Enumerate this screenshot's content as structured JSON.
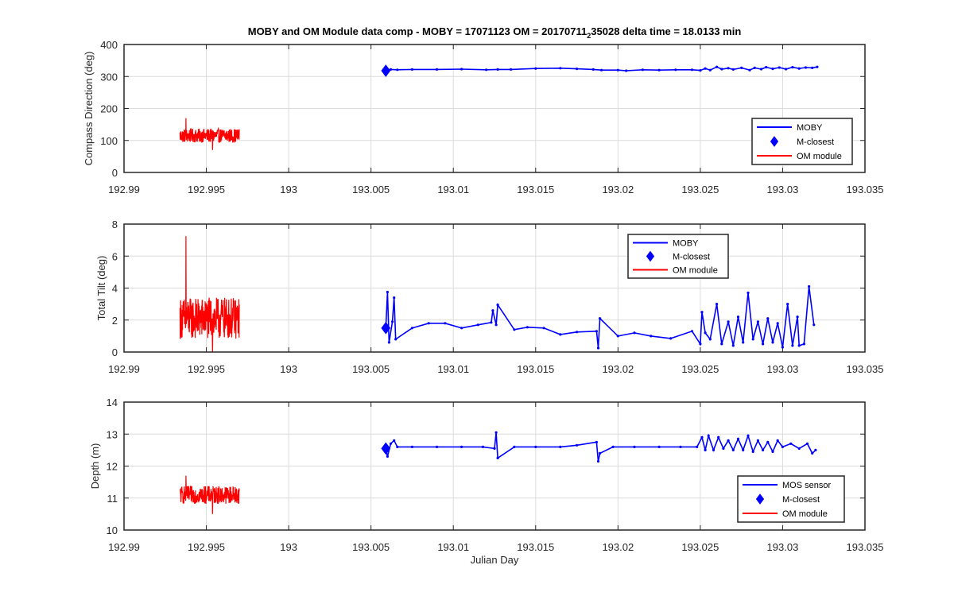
{
  "title": {
    "prefix": "MOBY and OM Module data comp - MOBY = 17071123 OM = 20170711",
    "subscript": "2",
    "suffix": "35028 delta time = 18.0133 min"
  },
  "xlabel": "Julian Day",
  "colors": {
    "moby": "#0000ff",
    "om": "#ff0000",
    "grid": "#dcdcdc",
    "axis": "#262626"
  },
  "chart_data": [
    {
      "type": "line",
      "ylabel": "Compass Direction (deg)",
      "xlim": [
        192.99,
        193.035
      ],
      "ylim": [
        0,
        400
      ],
      "xticks": [
        "192.99",
        "192.995",
        "193",
        "193.005",
        "193.01",
        "193.015",
        "193.02",
        "193.025",
        "193.03",
        "193.035"
      ],
      "yticks": [
        "0",
        "100",
        "200",
        "300",
        "400"
      ],
      "grid": true,
      "legend": {
        "placement": "bottom-right",
        "entries": [
          "MOBY",
          "M-closest",
          "OM module"
        ]
      },
      "series": [
        {
          "name": "MOBY",
          "style": "line-with-dots",
          "points": [
            [
              193.0059,
              318
            ],
            [
              193.0062,
              322
            ],
            [
              193.0066,
              321
            ],
            [
              193.0075,
              322
            ],
            [
              193.009,
              322
            ],
            [
              193.0105,
              323
            ],
            [
              193.012,
              321
            ],
            [
              193.0127,
              322
            ],
            [
              193.0135,
              322
            ],
            [
              193.015,
              325
            ],
            [
              193.0165,
              326
            ],
            [
              193.0175,
              324
            ],
            [
              193.0185,
              322
            ],
            [
              193.019,
              320
            ],
            [
              193.02,
              320
            ],
            [
              193.0205,
              318
            ],
            [
              193.0215,
              321
            ],
            [
              193.0225,
              320
            ],
            [
              193.0235,
              321
            ],
            [
              193.0245,
              321
            ],
            [
              193.025,
              319
            ],
            [
              193.0253,
              325
            ],
            [
              193.0256,
              320
            ],
            [
              193.026,
              330
            ],
            [
              193.0263,
              323
            ],
            [
              193.0267,
              326
            ],
            [
              193.027,
              322
            ],
            [
              193.0275,
              327
            ],
            [
              193.028,
              320
            ],
            [
              193.0283,
              327
            ],
            [
              193.0287,
              323
            ],
            [
              193.029,
              329
            ],
            [
              193.0294,
              324
            ],
            [
              193.0298,
              328
            ],
            [
              193.0302,
              323
            ],
            [
              193.0306,
              329
            ],
            [
              193.031,
              325
            ],
            [
              193.0314,
              328
            ],
            [
              193.0318,
              327
            ],
            [
              193.0321,
              330
            ]
          ]
        },
        {
          "name": "M-closest",
          "style": "diamond",
          "points": [
            [
              193.0059,
              318
            ]
          ]
        },
        {
          "name": "OM module",
          "style": "noise-band",
          "x_range": [
            192.9934,
            192.997
          ],
          "center": 115,
          "spread": 22,
          "peaks": [
            70,
            170
          ]
        }
      ]
    },
    {
      "type": "line",
      "ylabel": "Total Tilt (deg)",
      "xlim": [
        192.99,
        193.035
      ],
      "ylim": [
        0,
        8
      ],
      "xticks": [
        "192.99",
        "192.995",
        "193",
        "193.005",
        "193.01",
        "193.015",
        "193.02",
        "193.025",
        "193.03",
        "193.035"
      ],
      "yticks": [
        "0",
        "2",
        "4",
        "6",
        "8"
      ],
      "grid": true,
      "legend": {
        "placement": "top-center-right",
        "entries": [
          "MOBY",
          "M-closest",
          "OM module"
        ]
      },
      "series": [
        {
          "name": "MOBY",
          "style": "line-with-dots",
          "points": [
            [
              193.0059,
              1.5
            ],
            [
              193.006,
              3.75
            ],
            [
              193.0061,
              0.6
            ],
            [
              193.0063,
              1.9
            ],
            [
              193.0064,
              3.4
            ],
            [
              193.0065,
              0.8
            ],
            [
              193.0075,
              1.5
            ],
            [
              193.0085,
              1.8
            ],
            [
              193.0095,
              1.8
            ],
            [
              193.0105,
              1.5
            ],
            [
              193.0115,
              1.7
            ],
            [
              193.0123,
              1.85
            ],
            [
              193.0124,
              2.6
            ],
            [
              193.0126,
              1.7
            ],
            [
              193.0127,
              2.95
            ],
            [
              193.0137,
              1.4
            ],
            [
              193.0145,
              1.55
            ],
            [
              193.0155,
              1.5
            ],
            [
              193.0165,
              1.1
            ],
            [
              193.0175,
              1.25
            ],
            [
              193.0187,
              1.3
            ],
            [
              193.0188,
              0.25
            ],
            [
              193.0189,
              2.1
            ],
            [
              193.02,
              1.0
            ],
            [
              193.021,
              1.2
            ],
            [
              193.022,
              1.0
            ],
            [
              193.0232,
              0.85
            ],
            [
              193.0245,
              1.3
            ],
            [
              193.025,
              0.5
            ],
            [
              193.0251,
              2.5
            ],
            [
              193.0253,
              1.2
            ],
            [
              193.0256,
              0.8
            ],
            [
              193.026,
              3.0
            ],
            [
              193.0263,
              0.5
            ],
            [
              193.0267,
              1.9
            ],
            [
              193.027,
              0.4
            ],
            [
              193.0273,
              2.2
            ],
            [
              193.0276,
              0.6
            ],
            [
              193.0279,
              3.7
            ],
            [
              193.0282,
              0.8
            ],
            [
              193.0285,
              1.9
            ],
            [
              193.0288,
              0.5
            ],
            [
              193.0291,
              2.1
            ],
            [
              193.0294,
              0.6
            ],
            [
              193.0297,
              1.8
            ],
            [
              193.03,
              0.3
            ],
            [
              193.0303,
              3.0
            ],
            [
              193.0306,
              0.4
            ],
            [
              193.0309,
              2.2
            ],
            [
              193.031,
              0.4
            ],
            [
              193.0313,
              0.5
            ],
            [
              193.0316,
              4.1
            ],
            [
              193.0319,
              1.7
            ]
          ]
        },
        {
          "name": "M-closest",
          "style": "diamond",
          "points": [
            [
              193.0059,
              1.5
            ]
          ]
        },
        {
          "name": "OM module",
          "style": "noise-band",
          "x_range": [
            192.9934,
            192.997
          ],
          "center": 2.1,
          "spread": 1.3,
          "peaks": [
            0.0,
            7.25
          ]
        }
      ]
    },
    {
      "type": "line",
      "ylabel": "Depth (m)",
      "xlim": [
        192.99,
        193.035
      ],
      "ylim": [
        10,
        14
      ],
      "xticks": [
        "192.99",
        "192.995",
        "193",
        "193.005",
        "193.01",
        "193.015",
        "193.02",
        "193.025",
        "193.03",
        "193.035"
      ],
      "yticks": [
        "10",
        "11",
        "12",
        "13",
        "14"
      ],
      "grid": true,
      "legend": {
        "placement": "bottom-right",
        "entries": [
          "MOS sensor",
          "M-closest",
          "OM module"
        ]
      },
      "series": [
        {
          "name": "MOS sensor",
          "style": "line-with-dots",
          "points": [
            [
              193.0059,
              12.55
            ],
            [
              193.006,
              12.3
            ],
            [
              193.0062,
              12.7
            ],
            [
              193.0064,
              12.8
            ],
            [
              193.0066,
              12.6
            ],
            [
              193.0075,
              12.6
            ],
            [
              193.009,
              12.6
            ],
            [
              193.0105,
              12.6
            ],
            [
              193.0118,
              12.6
            ],
            [
              193.0125,
              12.55
            ],
            [
              193.0126,
              13.05
            ],
            [
              193.0127,
              12.25
            ],
            [
              193.0137,
              12.6
            ],
            [
              193.015,
              12.6
            ],
            [
              193.0165,
              12.6
            ],
            [
              193.0175,
              12.65
            ],
            [
              193.0187,
              12.75
            ],
            [
              193.0188,
              12.15
            ],
            [
              193.0189,
              12.4
            ],
            [
              193.0197,
              12.6
            ],
            [
              193.021,
              12.6
            ],
            [
              193.0225,
              12.6
            ],
            [
              193.0238,
              12.6
            ],
            [
              193.0248,
              12.6
            ],
            [
              193.0251,
              12.9
            ],
            [
              193.0253,
              12.5
            ],
            [
              193.0255,
              12.95
            ],
            [
              193.0258,
              12.5
            ],
            [
              193.0261,
              12.9
            ],
            [
              193.0264,
              12.55
            ],
            [
              193.0267,
              12.8
            ],
            [
              193.027,
              12.5
            ],
            [
              193.0273,
              12.85
            ],
            [
              193.0276,
              12.5
            ],
            [
              193.0279,
              12.95
            ],
            [
              193.0282,
              12.45
            ],
            [
              193.0285,
              12.8
            ],
            [
              193.0288,
              12.5
            ],
            [
              193.0291,
              12.75
            ],
            [
              193.0294,
              12.45
            ],
            [
              193.0297,
              12.8
            ],
            [
              193.03,
              12.6
            ],
            [
              193.0305,
              12.7
            ],
            [
              193.031,
              12.55
            ],
            [
              193.0315,
              12.7
            ],
            [
              193.0318,
              12.4
            ],
            [
              193.032,
              12.5
            ]
          ]
        },
        {
          "name": "M-closest",
          "style": "diamond",
          "points": [
            [
              193.0059,
              12.55
            ]
          ]
        },
        {
          "name": "OM module",
          "style": "noise-band",
          "x_range": [
            192.9934,
            192.997
          ],
          "center": 11.1,
          "spread": 0.28,
          "peaks": [
            10.5,
            11.7
          ]
        }
      ]
    }
  ]
}
